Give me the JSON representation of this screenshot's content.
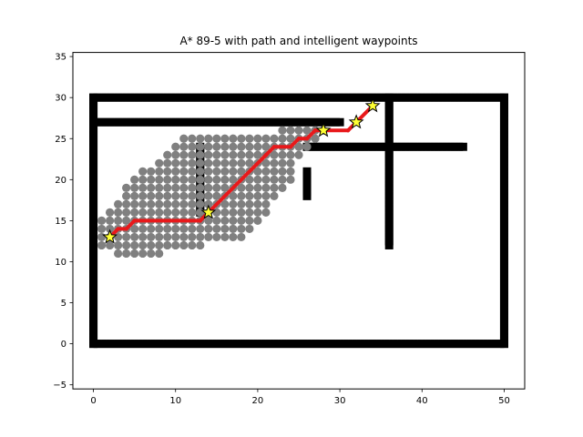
{
  "chart_data": {
    "type": "scatter",
    "title": "A* 89-5 with path and intelligent waypoints",
    "xlabel": "",
    "ylabel": "",
    "xlim": [
      -2.5,
      52.5
    ],
    "ylim": [
      -5.5,
      35.5
    ],
    "x_ticks": [
      0,
      10,
      20,
      30,
      40,
      50
    ],
    "y_ticks": [
      -5,
      0,
      5,
      10,
      15,
      20,
      25,
      30,
      35
    ],
    "grid": false,
    "legend": "none",
    "colors": {
      "obstacle": "#000000",
      "explored": "#808080",
      "path": "#e8191b",
      "waypoint_fill": "#ffff33",
      "waypoint_edge": "#000000"
    },
    "obstacles": [
      {
        "name": "outer wall bottom",
        "x": [
          0,
          50
        ],
        "y": [
          0,
          0
        ]
      },
      {
        "name": "outer wall top",
        "x": [
          0,
          50
        ],
        "y": [
          30,
          30
        ]
      },
      {
        "name": "outer wall left",
        "x": [
          0,
          0
        ],
        "y": [
          0,
          30
        ]
      },
      {
        "name": "outer wall right",
        "x": [
          50,
          50
        ],
        "y": [
          0,
          30
        ]
      },
      {
        "name": "inner wall upper",
        "x": [
          0,
          30
        ],
        "y": [
          27,
          27
        ]
      },
      {
        "name": "inner wall middle",
        "x": [
          26,
          45
        ],
        "y": [
          24,
          24
        ]
      },
      {
        "name": "vertical wall right",
        "x": [
          36,
          36
        ],
        "y": [
          12,
          30
        ]
      },
      {
        "name": "vertical wall left",
        "x": [
          13,
          13
        ],
        "y": [
          16,
          24
        ]
      },
      {
        "name": "short vertical wall",
        "x": [
          26,
          26
        ],
        "y": [
          18,
          21
        ]
      }
    ],
    "explored": {
      "x_ranges": [
        [
          2,
          4
        ],
        [
          1,
          16
        ],
        [
          1,
          20
        ],
        [
          1,
          24
        ],
        [
          3,
          28
        ]
      ],
      "rows": [
        {
          "y": 11,
          "x": [
            3,
            8
          ]
        },
        {
          "y": 12,
          "x": [
            1,
            13
          ]
        },
        {
          "y": 13,
          "x": [
            1,
            18
          ]
        },
        {
          "y": 14,
          "x": [
            1,
            19
          ]
        },
        {
          "y": 15,
          "x": [
            1,
            20
          ]
        },
        {
          "y": 16,
          "x": [
            2,
            21
          ]
        },
        {
          "y": 17,
          "x": [
            3,
            21
          ]
        },
        {
          "y": 18,
          "x": [
            4,
            22
          ]
        },
        {
          "y": 19,
          "x": [
            4,
            23
          ]
        },
        {
          "y": 20,
          "x": [
            5,
            24
          ]
        },
        {
          "y": 21,
          "x": [
            6,
            24
          ]
        },
        {
          "y": 22,
          "x": [
            8,
            24
          ]
        },
        {
          "y": 23,
          "x": [
            9,
            25
          ]
        },
        {
          "y": 24,
          "x": [
            10,
            26
          ]
        },
        {
          "y": 25,
          "x": [
            11,
            27
          ]
        },
        {
          "y": 26,
          "x": [
            23,
            28
          ]
        }
      ]
    },
    "path": {
      "x": [
        2,
        3,
        4,
        5,
        13,
        14,
        21,
        22,
        24,
        25,
        26,
        27,
        28,
        31,
        32,
        34
      ],
      "y": [
        13,
        14,
        14,
        15,
        15,
        16,
        23,
        24,
        24,
        25,
        25,
        26,
        26,
        26,
        27,
        29
      ]
    },
    "waypoints": {
      "x": [
        2,
        14,
        28,
        32,
        34
      ],
      "y": [
        13,
        16,
        26,
        27,
        29
      ]
    }
  }
}
